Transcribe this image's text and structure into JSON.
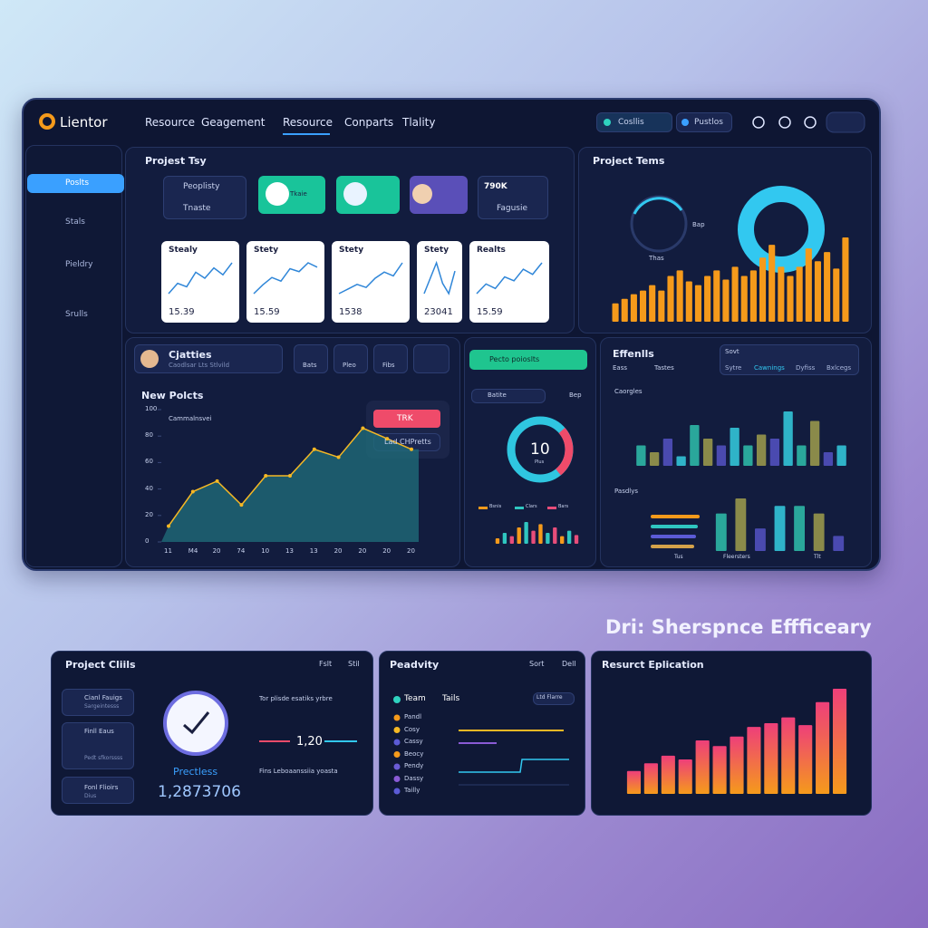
{
  "nav": {
    "brand": "Lientor",
    "items": [
      "Resource",
      "Geagement",
      "Resource",
      "Conparts",
      "Tlality"
    ],
    "pills": [
      "Cosllis",
      "Pustlos"
    ]
  },
  "sidebar": [
    "Poslts",
    "Stals",
    "Pieldry",
    "Srulls"
  ],
  "project_tsy": {
    "title": "Projest Tsy",
    "chips": [
      "Peoplisty",
      "Tnaste",
      "Tkaie"
    ],
    "stat": "790K",
    "stat_sub": "Fagusie",
    "cards": [
      {
        "title": "Stealy",
        "value": 15.39,
        "spark": [
          30,
          42,
          38,
          55,
          48,
          60,
          52,
          66
        ]
      },
      {
        "title": "Stety",
        "value": 15.59,
        "spark": [
          28,
          40,
          50,
          45,
          62,
          58,
          70,
          64
        ]
      },
      {
        "title": "Stety",
        "value": 1538,
        "spark": [
          32,
          38,
          44,
          40,
          52,
          60,
          55,
          72
        ]
      },
      {
        "title": "Stety",
        "value": 23041,
        "spark": [
          40,
          55,
          70,
          50,
          40,
          62
        ]
      },
      {
        "title": "Realts",
        "value": 15.59,
        "spark": [
          30,
          45,
          38,
          56,
          50,
          68,
          60,
          78
        ]
      }
    ]
  },
  "project_tems": {
    "title": "Project Tems",
    "bars": [
      20,
      25,
      30,
      34,
      40,
      34,
      50,
      56,
      44,
      40,
      50,
      56,
      46,
      60,
      50,
      56,
      70,
      84,
      60,
      50,
      60,
      80,
      66,
      76,
      58,
      92
    ],
    "color": "#f59a1b",
    "donut_color": "#32c8f0",
    "gauge_labels": [
      "Bap",
      "Thas"
    ]
  },
  "cjatties": {
    "title": "Cjatties",
    "subtitle": "Caodlsar Lts Stlvild",
    "buttons": [
      "Bats",
      "Pleo",
      "Fibs"
    ]
  },
  "new_polcts": {
    "title": "New Polcts",
    "legend": "Cammalnsvei",
    "ylim": [
      0,
      100
    ],
    "yticks": [
      0,
      20,
      40,
      60,
      80,
      100
    ],
    "categories": [
      "11",
      "M4",
      "20",
      "74",
      "10",
      "13",
      "13",
      "20",
      "20",
      "20",
      "20"
    ],
    "values": [
      12,
      38,
      46,
      28,
      50,
      50,
      70,
      64,
      86,
      78,
      70
    ],
    "color": "#f5b824",
    "fill": "#1f6a78",
    "tooltip": {
      "button": "TRK",
      "text": "Lad CHPretts"
    }
  },
  "gauge_panel": {
    "button": "Pecto poioslts",
    "row": "Batite",
    "row_side": "Bep",
    "value": 10,
    "value_sub": "Plus",
    "legend": [
      "Bsnis",
      "Clars",
      "Bars"
    ],
    "mini_bars": [
      10,
      20,
      14,
      30,
      40,
      24,
      36,
      20,
      30,
      14,
      24,
      16
    ],
    "mini_colors": [
      "#f59a1b",
      "#2fc6c0",
      "#e84d7a"
    ]
  },
  "effenlls": {
    "title": "Effenlls",
    "select": "Sovt",
    "filters": [
      "Eass",
      "Tastes"
    ],
    "tabs": [
      "Sytre",
      "Cawnings",
      "Dyfiss",
      "Bxlcegs"
    ],
    "group1": "Caorgles",
    "group2": "Pasdlys",
    "bars1": [
      30,
      20,
      40,
      14,
      60,
      40,
      30,
      56,
      30,
      46,
      40,
      80,
      30,
      66,
      20,
      30
    ],
    "bars2": [
      50,
      70,
      30,
      60,
      60,
      50,
      20
    ],
    "hbars": [
      54,
      52,
      50,
      48
    ],
    "colors": [
      "#2aa79b",
      "#8a8a4a",
      "#4a4ab0",
      "#2fb3c8"
    ],
    "hcolors": [
      "#f59a1b",
      "#2fc6c0",
      "#5b5bd6",
      "#d4a24a"
    ],
    "x2": [
      "Tus",
      "Fleersters",
      "Tlt"
    ]
  },
  "headline": "Dri: Sherspnce Effficeary",
  "clients": {
    "title": "Project Cliils",
    "actions": [
      "Fslt",
      "Stil"
    ],
    "items": [
      "Cianl Fauigs",
      "Finll Eaus",
      "Fonl Flioirs"
    ],
    "items_sub": [
      "Sargeintesss",
      "Pedt sfkorssss",
      "Dius"
    ],
    "label": "Prectless",
    "value": "1,2873706",
    "rate": "1,20",
    "para1": "Tor plisde esatiks yrbre",
    "para2": "Fins Leboaanssiia yoasta"
  },
  "peadvity": {
    "title": "Peadvity",
    "actions": [
      "Sort",
      "Dell"
    ],
    "legend": [
      "Team",
      "Tails"
    ],
    "tag": "Ltd Flarre",
    "names": [
      "Pandl",
      "Cosy",
      "Cassy",
      "Beocy",
      "Pendy",
      "Dassy",
      "Tailly"
    ],
    "colors": [
      "#f59a1b",
      "#f5b824",
      "#5b5bd6",
      "#f59a1b",
      "#6a5bd6",
      "#8a5bd6",
      "#5b5bd6"
    ]
  },
  "resurct": {
    "title": "Resurct Eplication",
    "values": [
      24,
      32,
      40,
      36,
      56,
      50,
      60,
      70,
      74,
      80,
      72,
      96,
      110
    ],
    "colors": [
      "#f59a1b",
      "#ee3f7a"
    ]
  }
}
